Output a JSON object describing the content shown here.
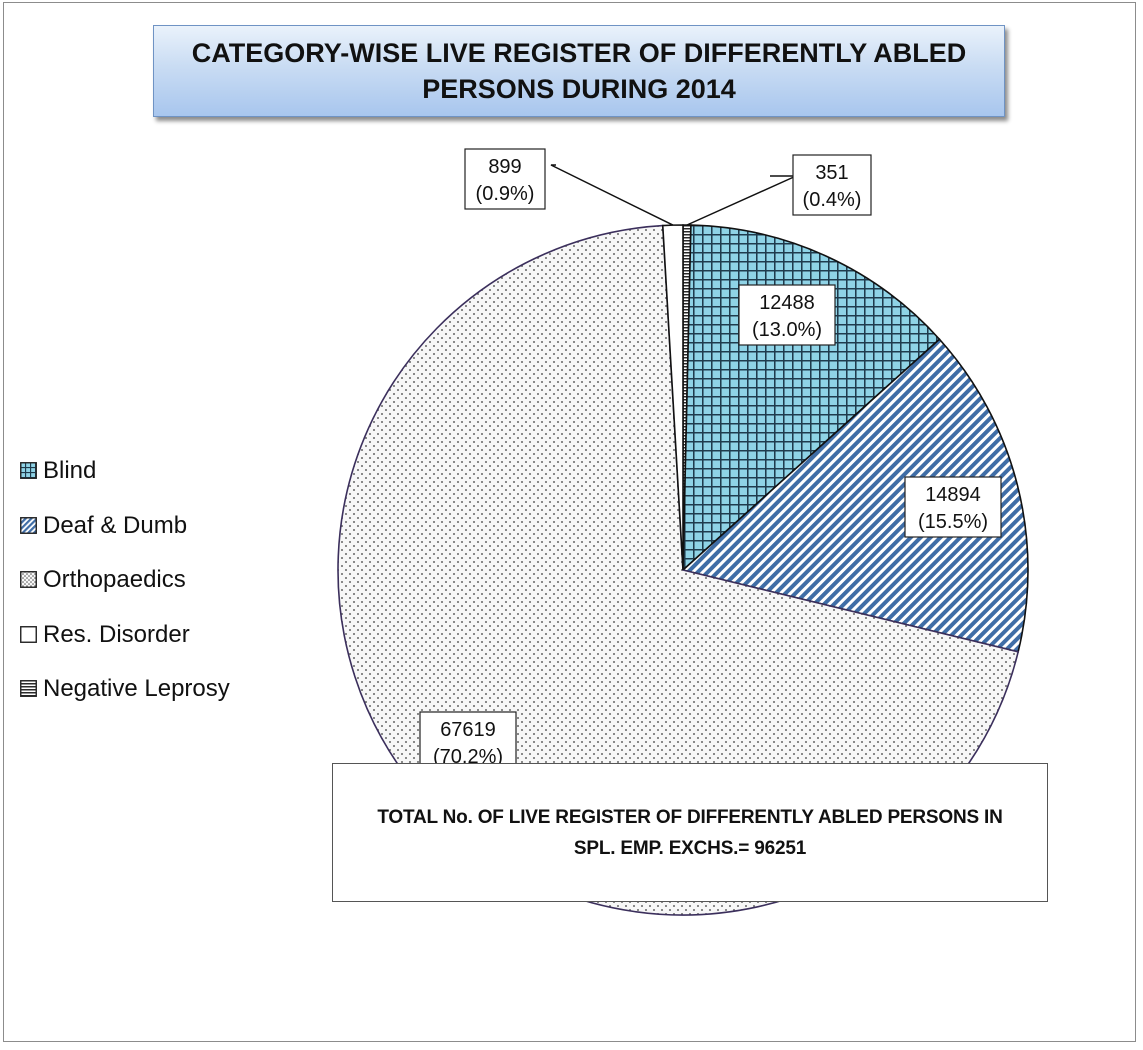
{
  "chart_data": {
    "type": "pie",
    "title": "CATEGORY-WISE LIVE REGISTER OF DIFFERENTLY ABLED PERSONS DURING  2014",
    "start_angle_deg": 0,
    "direction": "clockwise",
    "legend_position": "left",
    "slices": [
      {
        "name": "Negative Leprosy",
        "value": 351,
        "label_value": "351",
        "label_pct": "(0.4%)",
        "pattern": "hlines",
        "fill": "#ffffff"
      },
      {
        "name": "Blind",
        "value": 12488,
        "label_value": "12488",
        "label_pct": "(13.0%)",
        "pattern": "grid",
        "fill": "#8fd3e6"
      },
      {
        "name": "Deaf & Dumb",
        "value": 14894,
        "label_value": "14894",
        "label_pct": "(15.5%)",
        "pattern": "diagonal",
        "fill": "#4a76ae"
      },
      {
        "name": "Orthopaedics",
        "value": 67619,
        "label_value": "67619",
        "label_pct": "(70.2%)",
        "pattern": "dots",
        "fill": "#f2f2f2"
      },
      {
        "name": "Res. Disorder",
        "value": 899,
        "label_value": "899",
        "label_pct": "(0.9%)",
        "pattern": "none",
        "fill": "#ffffff"
      }
    ],
    "legend_order": [
      "Blind",
      "Deaf & Dumb",
      "Orthopaedics",
      "Res. Disorder",
      "Negative Leprosy"
    ]
  },
  "note": {
    "text": "TOTAL No. OF LIVE REGISTER OF DIFFERENTLY ABLED PERSONS IN SPL. EMP. EXCHS.= 96251"
  }
}
